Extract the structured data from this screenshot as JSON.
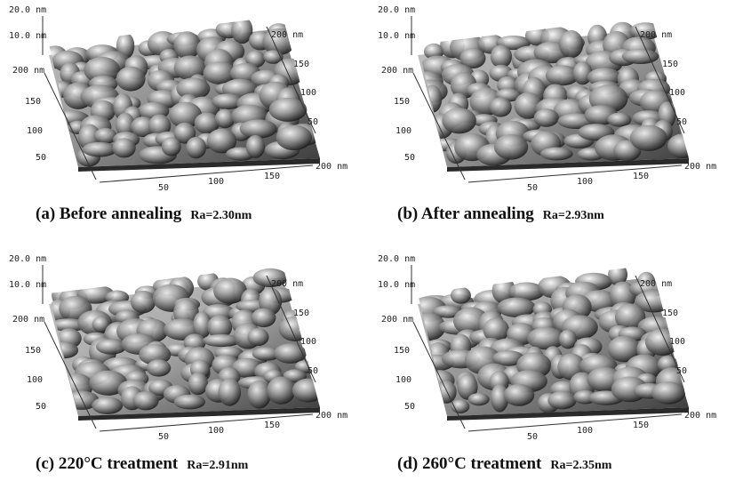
{
  "axes": {
    "z_max": "20.0 nm",
    "z_mid": "10.0 nm",
    "y_max": "200 nm",
    "x_max": "200 nm",
    "back_y_max": "200 nm",
    "ticks_y": [
      "150",
      "100",
      "50"
    ],
    "ticks_x": [
      "50",
      "100",
      "150"
    ],
    "ticks_back": [
      "150",
      "100",
      "50"
    ]
  },
  "panels": [
    {
      "caption": "(a) Before annealing",
      "ra": "Ra=2.30nm",
      "tone": "#8c8c8c",
      "seed": 3
    },
    {
      "caption": "(b) After annealing",
      "ra": "Ra=2.93nm",
      "tone": "#9a9a9a",
      "seed": 11
    },
    {
      "caption": "(c) 220°C treatment",
      "ra": "Ra=2.91nm",
      "tone": "#a5a5a5",
      "seed": 17
    },
    {
      "caption": "(d) 260°C treatment",
      "ra": "Ra=2.35nm",
      "tone": "#8f8f8f",
      "seed": 29
    }
  ]
}
